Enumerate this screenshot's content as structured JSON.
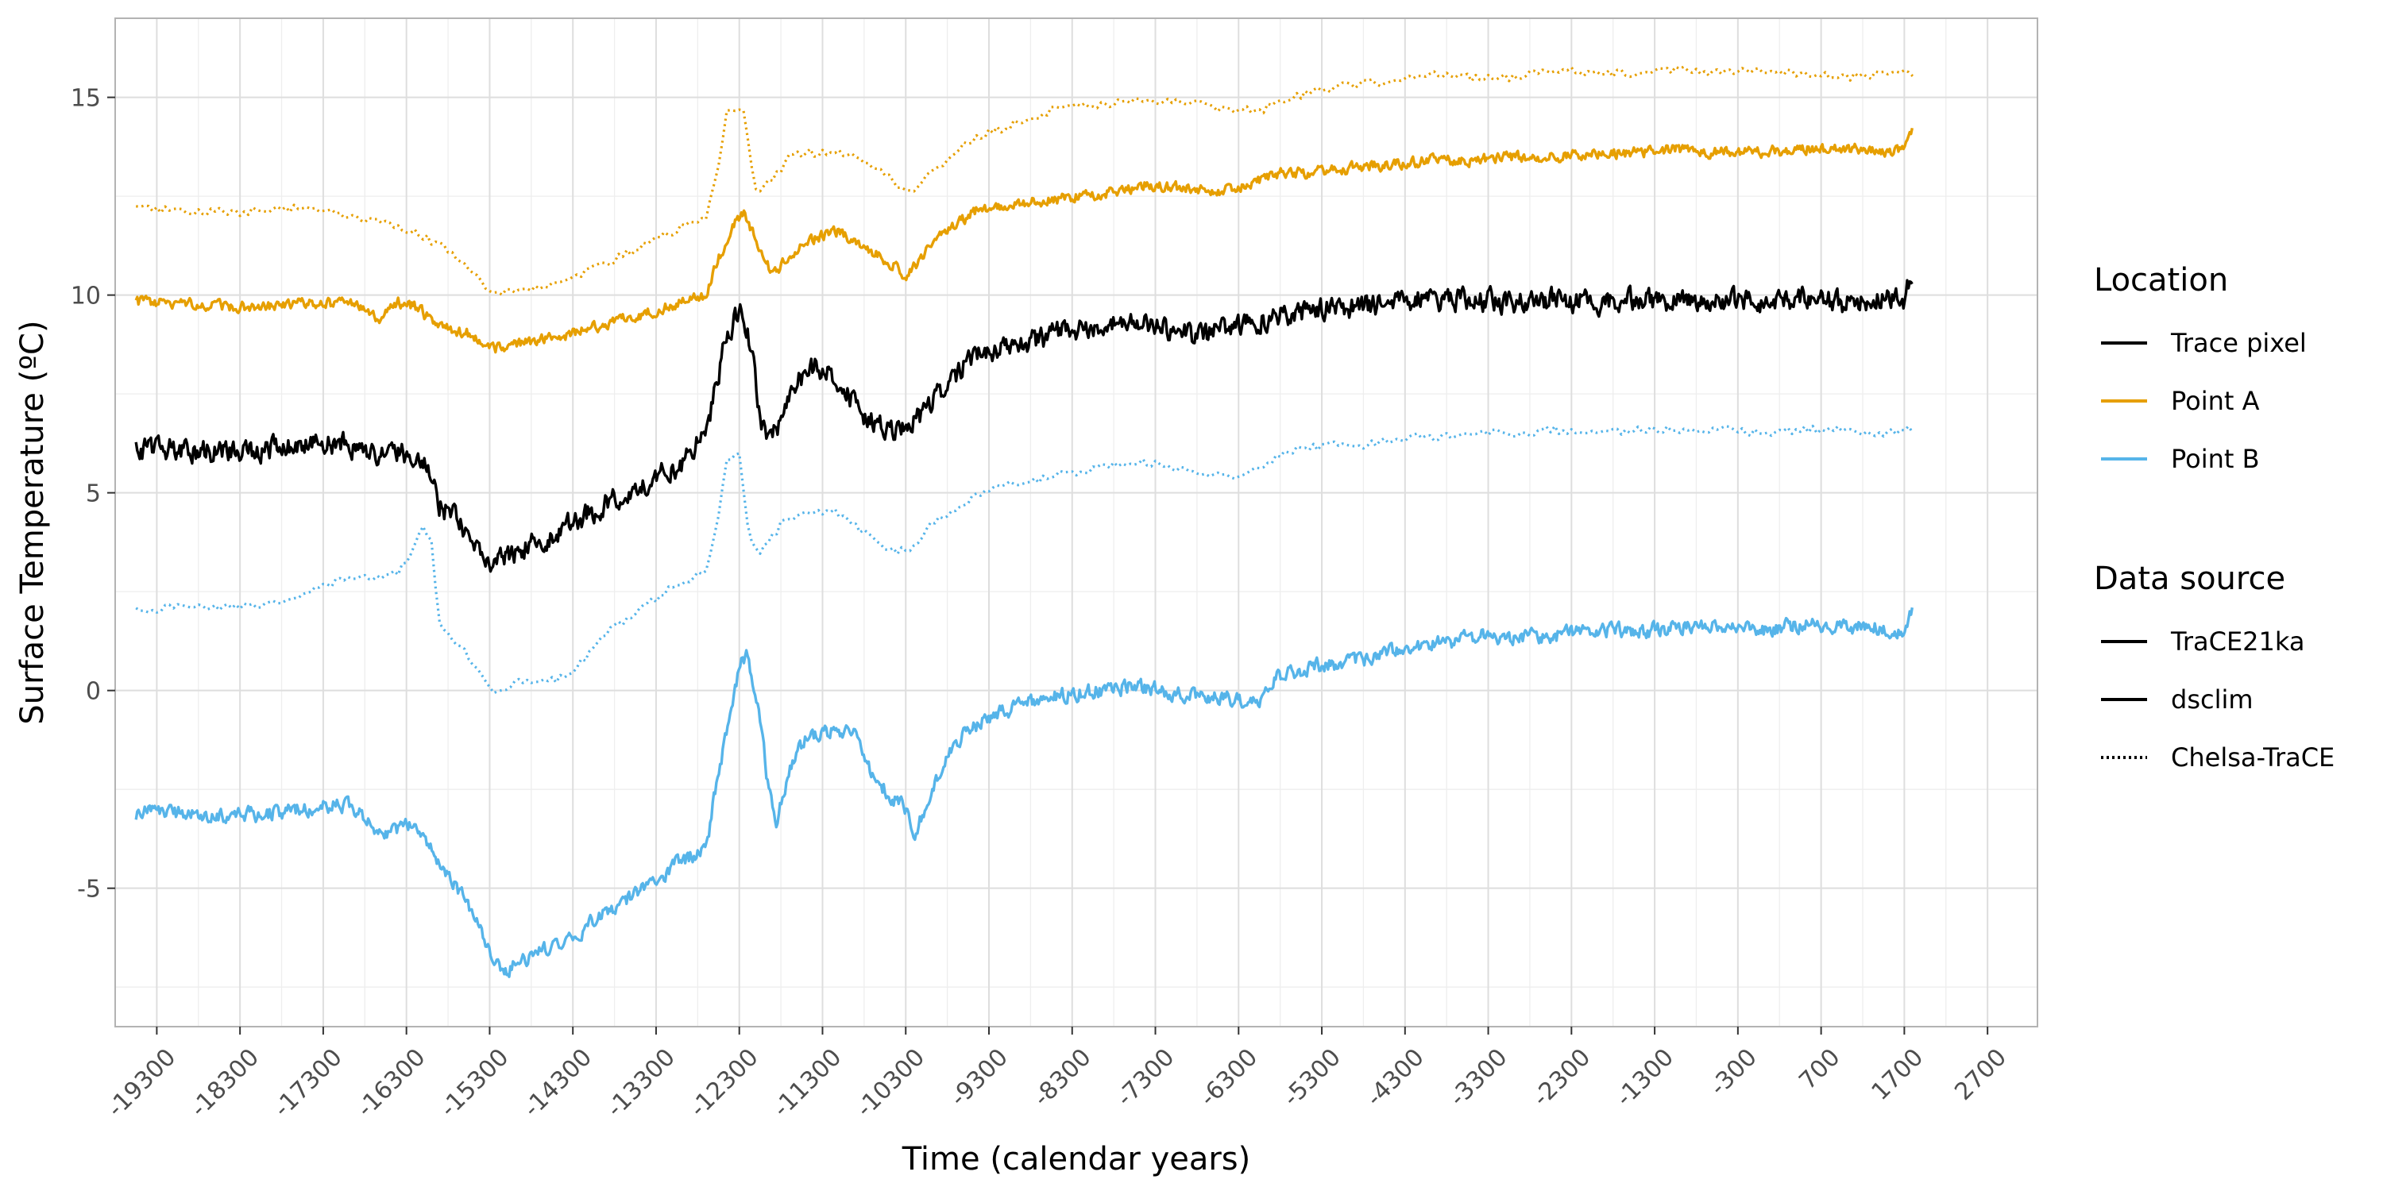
{
  "chart_data": {
    "type": "line",
    "xlabel": "Time (calendar years)",
    "ylabel": "Surface Temperature (ºC)",
    "xlim": [
      -19800,
      3300
    ],
    "ylim": [
      -8.5,
      17.0
    ],
    "x_ticks": [
      -19300,
      -18300,
      -17300,
      -16300,
      -15300,
      -14300,
      -13300,
      -12300,
      -11300,
      -10300,
      -9300,
      -8300,
      -7300,
      -6300,
      -5300,
      -4300,
      -3300,
      -2300,
      -1300,
      -300,
      700,
      1700,
      2700
    ],
    "x_tick_labels": [
      "-19300",
      "-18300",
      "-17300",
      "-16300",
      "-15300",
      "-14300",
      "-13300",
      "-12300",
      "-11300",
      "-10300",
      "-9300",
      "-8300",
      "-7300",
      "-6300",
      "-5300",
      "-4300",
      "-3300",
      "-2300",
      "-1300",
      "-300",
      "700",
      "1700",
      "2700"
    ],
    "y_ticks": [
      -5,
      0,
      5,
      10,
      15
    ],
    "y_tick_labels": [
      "-5",
      "0",
      "5",
      "10",
      "15"
    ],
    "grid": true,
    "legend_position": "right",
    "legends": [
      {
        "title": "Location",
        "entries": [
          {
            "label": "Trace pixel",
            "color": "#000000",
            "dash": "solid"
          },
          {
            "label": "Point A",
            "color": "#E69F00",
            "dash": "solid"
          },
          {
            "label": "Point B",
            "color": "#56B4E9",
            "dash": "solid"
          }
        ]
      },
      {
        "title": "Data source",
        "entries": [
          {
            "label": "TraCE21ka",
            "color": "#000000",
            "dash": "solid"
          },
          {
            "label": "dsclim",
            "color": "#000000",
            "dash": "solid"
          },
          {
            "label": "Chelsa-TraCE",
            "color": "#000000",
            "dash": "dotted"
          }
        ]
      }
    ],
    "series": [
      {
        "location": "Point A",
        "source": "Chelsa-TraCE",
        "color": "#E69F00",
        "dash": "dotted",
        "noise": 0.1,
        "x": [
          -19550,
          -18800,
          -18300,
          -17800,
          -17300,
          -16900,
          -16500,
          -16100,
          -15700,
          -15300,
          -15000,
          -14500,
          -14000,
          -13500,
          -13000,
          -12700,
          -12550,
          -12450,
          -12250,
          -12100,
          -11900,
          -11700,
          -11500,
          -11300,
          -11000,
          -10700,
          -10400,
          -10200,
          -9900,
          -9600,
          -9300,
          -8900,
          -8500,
          -8000,
          -7500,
          -7000,
          -6500,
          -6000,
          -5500,
          -5000,
          -4500,
          -4000,
          -3500,
          -3000,
          -2500,
          -2000,
          -1500,
          -1000,
          -500,
          0,
          500,
          1000,
          1500,
          1800
        ],
        "y": [
          12.2,
          12.1,
          12.1,
          12.2,
          12.2,
          11.9,
          11.8,
          11.5,
          11.0,
          10.1,
          10.1,
          10.3,
          10.7,
          11.2,
          11.7,
          12.0,
          13.3,
          14.7,
          14.7,
          12.6,
          12.9,
          13.5,
          13.6,
          13.6,
          13.6,
          13.3,
          12.8,
          12.7,
          13.2,
          13.8,
          14.1,
          14.4,
          14.7,
          14.8,
          14.9,
          14.9,
          14.7,
          14.7,
          15.1,
          15.3,
          15.4,
          15.6,
          15.5,
          15.5,
          15.7,
          15.6,
          15.6,
          15.7,
          15.6,
          15.7,
          15.6,
          15.5,
          15.6,
          15.6
        ]
      },
      {
        "location": "Point A",
        "source": "TraCE21ka",
        "color": "#E69F00",
        "dash": "solid",
        "noise": 0.22,
        "x": [
          -19550,
          -19000,
          -18500,
          -18000,
          -17500,
          -17000,
          -16600,
          -16400,
          -16200,
          -15900,
          -15500,
          -15300,
          -15000,
          -14500,
          -14000,
          -13500,
          -13000,
          -12700,
          -12550,
          -12400,
          -12250,
          -12050,
          -11900,
          -11700,
          -11500,
          -11300,
          -11100,
          -10900,
          -10600,
          -10300,
          -10000,
          -9700,
          -9400,
          -9000,
          -8600,
          -8200,
          -7800,
          -7400,
          -7000,
          -6600,
          -6200,
          -5800,
          -5400,
          -5000,
          -4500,
          -4000,
          -3500,
          -3000,
          -2500,
          -2000,
          -1500,
          -1000,
          -500,
          0,
          500,
          1000,
          1500,
          1700,
          1800
        ],
        "y": [
          9.8,
          9.8,
          9.7,
          9.7,
          9.8,
          9.8,
          9.4,
          9.8,
          9.7,
          9.2,
          9.0,
          8.6,
          8.8,
          8.9,
          9.2,
          9.5,
          9.8,
          10.0,
          10.9,
          11.7,
          12.1,
          11.2,
          10.5,
          11.0,
          11.3,
          11.5,
          11.6,
          11.3,
          11.0,
          10.5,
          11.2,
          11.8,
          12.2,
          12.3,
          12.4,
          12.5,
          12.6,
          12.8,
          12.7,
          12.6,
          12.8,
          13.1,
          13.1,
          13.2,
          13.3,
          13.4,
          13.4,
          13.5,
          13.5,
          13.6,
          13.6,
          13.7,
          13.6,
          13.6,
          13.7,
          13.7,
          13.6,
          13.7,
          14.3
        ]
      },
      {
        "location": "Trace pixel",
        "source": "TraCE21ka",
        "color": "#000000",
        "dash": "solid",
        "noise": 0.45,
        "x": [
          -19550,
          -19000,
          -18500,
          -18000,
          -17500,
          -17000,
          -16600,
          -16400,
          -16100,
          -15900,
          -15700,
          -15500,
          -15300,
          -15000,
          -14500,
          -14000,
          -13500,
          -13000,
          -12700,
          -12500,
          -12300,
          -12200,
          -12050,
          -11950,
          -11800,
          -11600,
          -11400,
          -11200,
          -11000,
          -10800,
          -10500,
          -10300,
          -10100,
          -9800,
          -9500,
          -9200,
          -8800,
          -8400,
          -8000,
          -7600,
          -7200,
          -6800,
          -6400,
          -6000,
          -5500,
          -5000,
          -4500,
          -4000,
          -3500,
          -3000,
          -2500,
          -2000,
          -1500,
          -1000,
          -500,
          0,
          500,
          1000,
          1500,
          1700,
          1800
        ],
        "y": [
          6.1,
          6.1,
          6.0,
          6.1,
          6.3,
          6.2,
          5.9,
          6.0,
          5.9,
          4.7,
          4.3,
          3.8,
          3.3,
          3.5,
          4.0,
          4.6,
          5.2,
          5.7,
          6.5,
          8.5,
          9.7,
          9.2,
          7.0,
          6.2,
          6.8,
          7.8,
          8.2,
          8.1,
          7.5,
          7.0,
          6.7,
          6.6,
          7.0,
          7.8,
          8.4,
          8.6,
          8.8,
          9.1,
          9.2,
          9.3,
          9.2,
          8.9,
          9.2,
          9.4,
          9.6,
          9.7,
          9.8,
          9.9,
          9.9,
          9.8,
          9.9,
          9.8,
          9.9,
          9.8,
          9.9,
          9.8,
          9.9,
          9.8,
          9.9,
          9.9,
          10.5
        ]
      },
      {
        "location": "Point B",
        "source": "Chelsa-TraCE",
        "color": "#56B4E9",
        "dash": "dotted",
        "noise": 0.1,
        "x": [
          -19550,
          -19000,
          -18500,
          -18000,
          -17600,
          -17300,
          -17000,
          -16700,
          -16400,
          -16200,
          -16100,
          -16000,
          -15900,
          -15700,
          -15500,
          -15300,
          -15200,
          -15000,
          -14700,
          -14500,
          -14300,
          -14100,
          -13800,
          -13500,
          -13200,
          -12900,
          -12700,
          -12550,
          -12450,
          -12300,
          -12200,
          -12100,
          -12000,
          -11800,
          -11600,
          -11400,
          -11200,
          -11000,
          -10800,
          -10500,
          -10300,
          -10200,
          -10000,
          -9700,
          -9400,
          -9100,
          -8800,
          -8400,
          -8000,
          -7600,
          -7200,
          -6800,
          -6400,
          -6000,
          -5600,
          -5200,
          -4800,
          -4400,
          -4000,
          -3500,
          -3000,
          -2500,
          -2000,
          -1500,
          -1000,
          -500,
          0,
          500,
          1000,
          1500,
          1800
        ],
        "y": [
          2.0,
          2.1,
          2.1,
          2.2,
          2.4,
          2.6,
          2.9,
          2.8,
          3.0,
          3.6,
          4.2,
          3.8,
          1.6,
          1.2,
          0.7,
          0.0,
          0.0,
          0.2,
          0.3,
          0.3,
          0.4,
          1.0,
          1.6,
          2.0,
          2.5,
          2.8,
          3.0,
          4.5,
          5.8,
          6.0,
          4.2,
          3.5,
          3.6,
          4.2,
          4.4,
          4.5,
          4.6,
          4.3,
          4.0,
          3.6,
          3.5,
          3.7,
          4.2,
          4.6,
          5.0,
          5.2,
          5.3,
          5.5,
          5.6,
          5.8,
          5.7,
          5.5,
          5.4,
          5.7,
          6.1,
          6.2,
          6.2,
          6.4,
          6.4,
          6.5,
          6.5,
          6.6,
          6.5,
          6.6,
          6.6,
          6.6,
          6.5,
          6.6,
          6.6,
          6.5,
          6.6
        ]
      },
      {
        "location": "Point B",
        "source": "dsclim",
        "color": "#56B4E9",
        "dash": "solid",
        "noise": 0.3,
        "x": [
          -19550,
          -19000,
          -18500,
          -18000,
          -17500,
          -17100,
          -16900,
          -16600,
          -16300,
          -16100,
          -15900,
          -15700,
          -15500,
          -15300,
          -15100,
          -14800,
          -14500,
          -14200,
          -13900,
          -13600,
          -13300,
          -13000,
          -12700,
          -12600,
          -12450,
          -12300,
          -12200,
          -12050,
          -11950,
          -11850,
          -11700,
          -11500,
          -11300,
          -11100,
          -10900,
          -10700,
          -10500,
          -10300,
          -10200,
          -10000,
          -9800,
          -9500,
          -9200,
          -8800,
          -8400,
          -8000,
          -7600,
          -7200,
          -6800,
          -6400,
          -6100,
          -5800,
          -5400,
          -5000,
          -4600,
          -4200,
          -3800,
          -3400,
          -3000,
          -2500,
          -2000,
          -1500,
          -1000,
          -500,
          0,
          500,
          1000,
          1500,
          1700,
          1800
        ],
        "y": [
          -3.1,
          -3.1,
          -3.2,
          -3.1,
          -3.0,
          -2.9,
          -3.0,
          -3.6,
          -3.4,
          -3.7,
          -4.4,
          -5.0,
          -5.6,
          -6.6,
          -7.1,
          -6.7,
          -6.4,
          -6.1,
          -5.6,
          -5.2,
          -4.8,
          -4.3,
          -4.0,
          -2.7,
          -1.0,
          0.6,
          0.9,
          -0.8,
          -2.5,
          -3.3,
          -2.0,
          -1.2,
          -1.1,
          -1.0,
          -1.1,
          -2.2,
          -2.6,
          -3.0,
          -3.6,
          -2.6,
          -1.5,
          -0.9,
          -0.6,
          -0.3,
          -0.1,
          0.0,
          0.1,
          0.0,
          -0.1,
          -0.2,
          -0.3,
          0.4,
          0.6,
          0.7,
          0.9,
          1.1,
          1.2,
          1.4,
          1.3,
          1.4,
          1.5,
          1.5,
          1.6,
          1.6,
          1.5,
          1.7,
          1.6,
          1.6,
          1.5,
          2.2
        ]
      }
    ]
  }
}
